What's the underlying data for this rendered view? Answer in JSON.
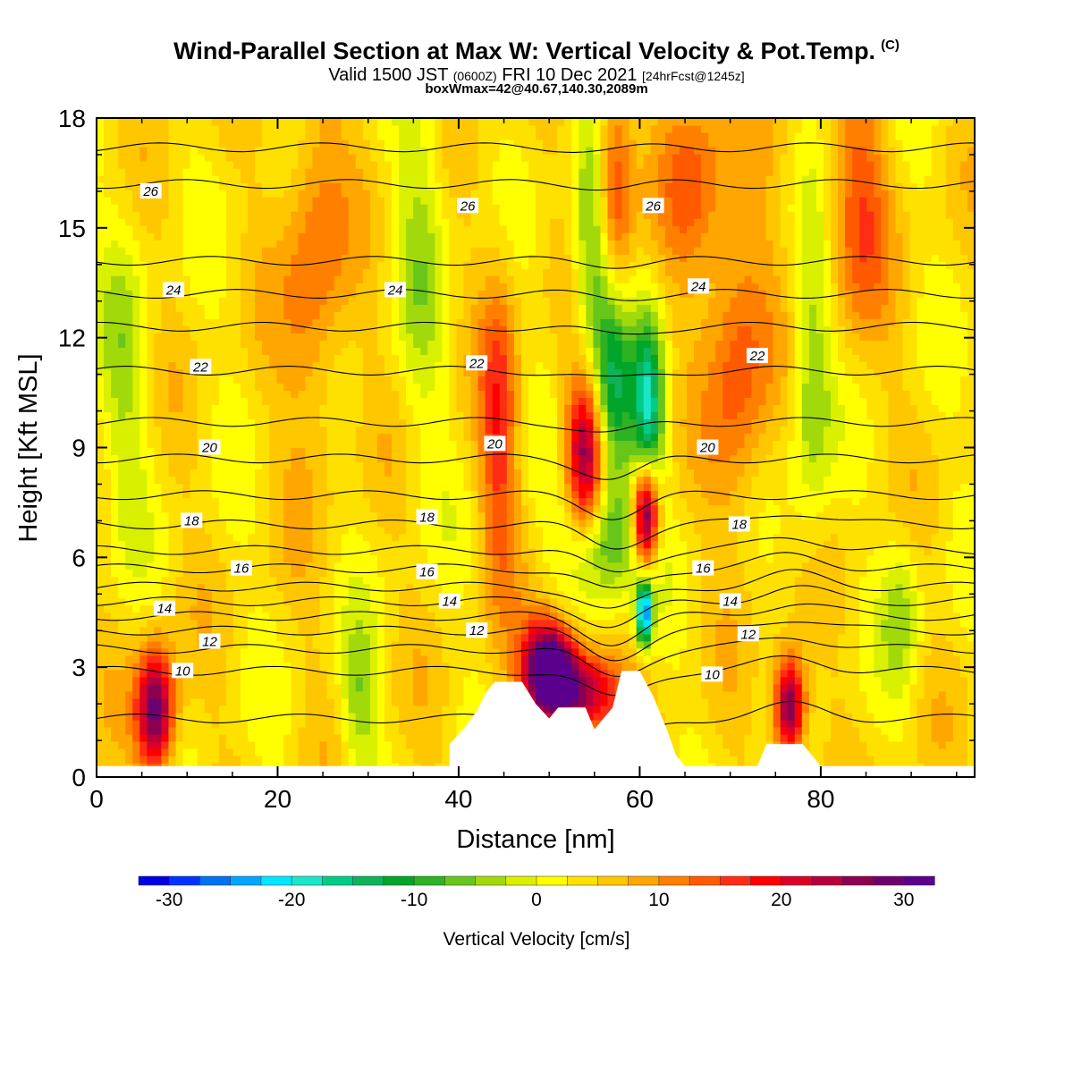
{
  "title": {
    "main": "Wind-Parallel Section at Max W: Vertical Velocity & Pot.Temp.",
    "mark": "(C)",
    "valid_a": "Valid 1500 JST",
    "valid_b": "(0600Z)",
    "valid_c": "FRI 10 Dec 2021",
    "valid_d": "[24hrFcst@1245z]",
    "box": "boxWmax=42@40.67,140.30,2089m"
  },
  "chart_data": {
    "type": "heatmap",
    "xlabel": "Distance [nm]",
    "ylabel": "Height [Kft MSL]",
    "xlim": [
      0,
      97
    ],
    "ylim": [
      0,
      18
    ],
    "xticks": [
      "0",
      "20",
      "40",
      "60",
      "80"
    ],
    "yticks": [
      "0",
      "3",
      "6",
      "9",
      "12",
      "15",
      "18"
    ],
    "grid": false,
    "colorbar": {
      "title": "Vertical Velocity [cm/s]",
      "placement": "bottom",
      "tick_labels": [
        "-30",
        "-20",
        "-10",
        "0",
        "10",
        "20",
        "30"
      ],
      "tick_values": [
        -30,
        -20,
        -10,
        0,
        10,
        20,
        30
      ],
      "range": [
        -32.5,
        32.5
      ],
      "bin": 2.5,
      "colors": [
        "#0000e6",
        "#0033ff",
        "#0073f0",
        "#00a6ff",
        "#00e6ff",
        "#1ae6c8",
        "#00cc88",
        "#0db359",
        "#00a52a",
        "#2db222",
        "#68c61b",
        "#a2d90a",
        "#d9f000",
        "#ffff00",
        "#ffe100",
        "#ffc700",
        "#ffa600",
        "#ff8000",
        "#ff5a00",
        "#ff2d14",
        "#ff0000",
        "#dc0028",
        "#b4003c",
        "#8c0050",
        "#6e006e",
        "#5a008c"
      ]
    },
    "velocity_cells": [
      {
        "x": 6.5,
        "z": 1.8,
        "w": 27,
        "sx": 1.5,
        "sz": 1.2
      },
      {
        "x": 50,
        "z": 3.0,
        "w": 34,
        "sx": 2.0,
        "sz": 0.9
      },
      {
        "x": 53.5,
        "z": 2.3,
        "w": 22,
        "sx": 3.0,
        "sz": 0.8
      },
      {
        "x": 54,
        "z": 8.8,
        "w": 24,
        "sx": 1.5,
        "sz": 1.6
      },
      {
        "x": 57,
        "z": 16.0,
        "w": 16,
        "sx": 1.5,
        "sz": 2.2
      },
      {
        "x": 60.7,
        "z": 7.2,
        "w": 32,
        "sx": 1.0,
        "sz": 1.0
      },
      {
        "x": 60.5,
        "z": 4.5,
        "w": -30,
        "sx": 0.6,
        "sz": 0.6
      },
      {
        "x": 61,
        "z": 10.0,
        "w": -20,
        "sx": 1.2,
        "sz": 1.8
      },
      {
        "x": 57,
        "z": 10.5,
        "w": -16,
        "sx": 1.6,
        "sz": 2.0
      },
      {
        "x": 56,
        "z": 6.5,
        "w": -14,
        "sx": 3.0,
        "sz": 1.2
      },
      {
        "x": 55,
        "z": 14.5,
        "w": -14,
        "sx": 1.6,
        "sz": 2.4
      },
      {
        "x": 76.5,
        "z": 1.9,
        "w": 27,
        "sx": 1.2,
        "sz": 1.0
      },
      {
        "x": 79,
        "z": 11.0,
        "w": -10,
        "sx": 1.6,
        "sz": 3.0
      },
      {
        "x": 44.5,
        "z": 9.5,
        "w": 12,
        "sx": 1.5,
        "sz": 3.0
      },
      {
        "x": 24,
        "z": 14.0,
        "w": 9,
        "sx": 2.5,
        "sz": 3.5
      },
      {
        "x": 71,
        "z": 11.5,
        "w": 11,
        "sx": 2.5,
        "sz": 3.0
      },
      {
        "x": 66,
        "z": 16.5,
        "w": 9,
        "sx": 2.5,
        "sz": 2.0
      },
      {
        "x": 89,
        "z": 4.5,
        "w": -7,
        "sx": 1.5,
        "sz": 1.5
      },
      {
        "x": 29,
        "z": 2.0,
        "w": -8,
        "sx": 1.5,
        "sz": 1.5
      },
      {
        "x": 3,
        "z": 11.0,
        "w": -6,
        "sx": 2.0,
        "sz": 3.0
      },
      {
        "x": 36,
        "z": 15.0,
        "w": -6,
        "sx": 2.0,
        "sz": 4.0
      },
      {
        "x": 84,
        "z": 15.5,
        "w": 10,
        "sx": 2.5,
        "sz": 2.5
      }
    ],
    "terrain": [
      {
        "x": 0,
        "z": 0.3
      },
      {
        "x": 39,
        "z": 0.3
      },
      {
        "x": 39,
        "z": 0.9
      },
      {
        "x": 40.5,
        "z": 1.3
      },
      {
        "x": 42,
        "z": 1.8
      },
      {
        "x": 43,
        "z": 2.3
      },
      {
        "x": 44,
        "z": 2.6
      },
      {
        "x": 47,
        "z": 2.6
      },
      {
        "x": 48.5,
        "z": 2.0
      },
      {
        "x": 50,
        "z": 1.6
      },
      {
        "x": 51,
        "z": 1.9
      },
      {
        "x": 54,
        "z": 1.9
      },
      {
        "x": 55,
        "z": 1.3
      },
      {
        "x": 56,
        "z": 1.6
      },
      {
        "x": 57,
        "z": 1.9
      },
      {
        "x": 58,
        "z": 2.9
      },
      {
        "x": 60,
        "z": 2.9
      },
      {
        "x": 61.5,
        "z": 2.2
      },
      {
        "x": 63,
        "z": 1.3
      },
      {
        "x": 64,
        "z": 0.6
      },
      {
        "x": 65,
        "z": 0.3
      },
      {
        "x": 73,
        "z": 0.3
      },
      {
        "x": 74,
        "z": 0.9
      },
      {
        "x": 78,
        "z": 0.9
      },
      {
        "x": 79,
        "z": 0.6
      },
      {
        "x": 80,
        "z": 0.3
      },
      {
        "x": 97,
        "z": 0.3
      }
    ],
    "isentropes": {
      "levels": [
        9,
        10,
        11,
        12,
        13,
        14,
        15,
        16,
        17,
        18,
        19,
        20,
        21,
        22,
        23,
        24,
        25,
        26,
        27
      ],
      "base_heights": [
        1.6,
        2.9,
        3.5,
        4.0,
        4.4,
        4.8,
        5.2,
        5.7,
        6.2,
        6.9,
        7.7,
        8.7,
        9.7,
        11.1,
        12.3,
        13.2,
        14.1,
        16.2,
        17.2
      ],
      "labels": [
        {
          "text": "26",
          "x": 6,
          "z": 16.0
        },
        {
          "text": "26",
          "x": 41,
          "z": 15.6
        },
        {
          "text": "26",
          "x": 61.5,
          "z": 15.6
        },
        {
          "text": "24",
          "x": 8.5,
          "z": 13.3
        },
        {
          "text": "24",
          "x": 33,
          "z": 13.3
        },
        {
          "text": "24",
          "x": 66.5,
          "z": 13.4
        },
        {
          "text": "22",
          "x": 11.5,
          "z": 11.2
        },
        {
          "text": "22",
          "x": 42,
          "z": 11.3
        },
        {
          "text": "22",
          "x": 73,
          "z": 11.5
        },
        {
          "text": "20",
          "x": 12.5,
          "z": 9.0
        },
        {
          "text": "20",
          "x": 44,
          "z": 9.1
        },
        {
          "text": "20",
          "x": 67.5,
          "z": 9.0
        },
        {
          "text": "18",
          "x": 10.5,
          "z": 7.0
        },
        {
          "text": "18",
          "x": 36.5,
          "z": 7.1
        },
        {
          "text": "18",
          "x": 71,
          "z": 6.9
        },
        {
          "text": "16",
          "x": 16,
          "z": 5.7
        },
        {
          "text": "16",
          "x": 36.5,
          "z": 5.6
        },
        {
          "text": "16",
          "x": 67,
          "z": 5.7
        },
        {
          "text": "14",
          "x": 7.5,
          "z": 4.6
        },
        {
          "text": "14",
          "x": 39,
          "z": 4.8
        },
        {
          "text": "14",
          "x": 70,
          "z": 4.8
        },
        {
          "text": "12",
          "x": 12.5,
          "z": 3.7
        },
        {
          "text": "12",
          "x": 42,
          "z": 4.0
        },
        {
          "text": "12",
          "x": 72,
          "z": 3.9
        },
        {
          "text": "10",
          "x": 9.5,
          "z": 2.9
        },
        {
          "text": "10",
          "x": 68,
          "z": 2.8
        }
      ]
    }
  }
}
